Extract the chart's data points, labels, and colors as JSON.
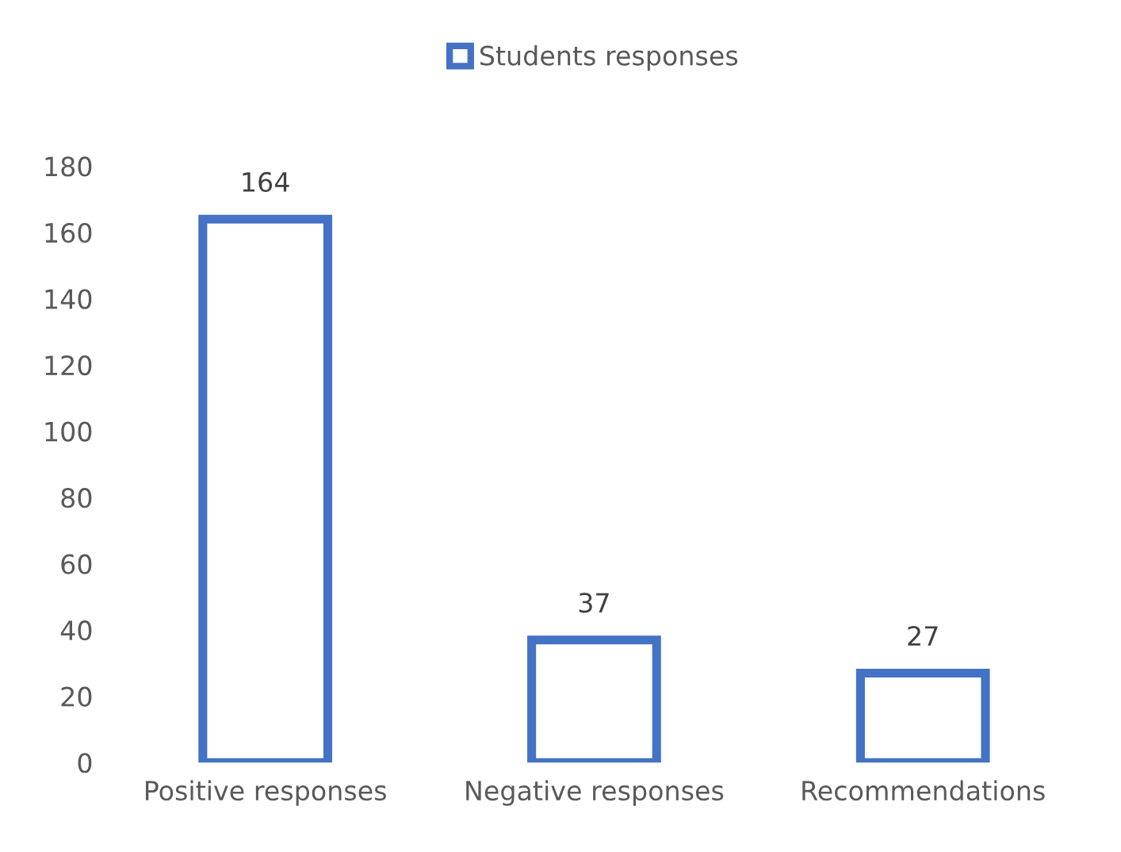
{
  "chart_data": {
    "type": "bar",
    "categories": [
      "Positive responses",
      "Negative responses",
      "Recommendations"
    ],
    "series": [
      {
        "name": "Students responses",
        "color": "#4472c4",
        "values": [
          164,
          37,
          27
        ]
      }
    ],
    "ylim": [
      0,
      180
    ],
    "yticks": [
      0,
      20,
      40,
      60,
      80,
      100,
      120,
      140,
      160,
      180
    ],
    "grid": false,
    "legend": "top",
    "data_labels": true
  }
}
